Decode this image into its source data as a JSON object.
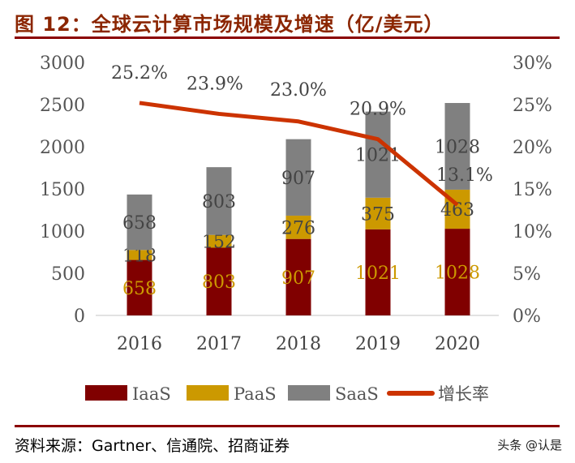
{
  "title": "图 12：全球云计算市场规模及增速（亿/美元）",
  "source": "资料来源：Gartner、信通院、招商证券",
  "watermark": "头条 @认是",
  "colors": {
    "iaas": "#800000",
    "paas": "#CC9900",
    "saas": "#808080",
    "growth": "#CC3300",
    "title": "#8B2500"
  },
  "chart_data": {
    "type": "bar",
    "stacked": true,
    "categories": [
      "2016",
      "2017",
      "2018",
      "2019",
      "2020"
    ],
    "series": [
      {
        "name": "IaaS",
        "values": [
          658,
          803,
          907,
          1021,
          1028
        ]
      },
      {
        "name": "PaaS",
        "values": [
          118,
          152,
          276,
          375,
          463
        ]
      },
      {
        "name": "SaaS",
        "values": [
          658,
          803,
          907,
          1021,
          1028
        ]
      }
    ],
    "line_series": {
      "name": "增长率",
      "axis": "right",
      "values": [
        25.2,
        23.9,
        23.0,
        20.9,
        13.1
      ],
      "labels": [
        "25.2%",
        "23.9%",
        "23.0%",
        "20.9%",
        "13.1%"
      ]
    },
    "left_axis": {
      "ylim": [
        0,
        3000
      ],
      "ticks": [
        "0",
        "500",
        "1000",
        "1500",
        "2000",
        "2500",
        "3000"
      ]
    },
    "right_axis": {
      "ylim": [
        0,
        30
      ],
      "ticks": [
        "0%",
        "5%",
        "10%",
        "15%",
        "20%",
        "25%",
        "30%"
      ]
    },
    "grid": false,
    "legend": "bottom"
  }
}
